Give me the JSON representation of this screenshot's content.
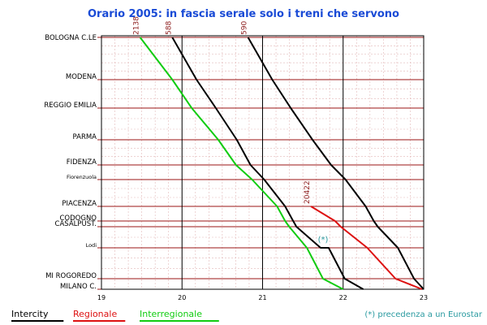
{
  "chart_data": {
    "type": "line",
    "title": "Orario 2005: in fascia serale solo i treni che servono",
    "x_unit": "hour of day",
    "xlim": [
      19,
      23
    ],
    "x_ticks": [
      "19",
      "20",
      "21",
      "22",
      "23"
    ],
    "stations": [
      {
        "name": "BOLOGNA C.LE",
        "small": false
      },
      {
        "name": "MODENA",
        "small": false
      },
      {
        "name": "REGGIO EMILIA",
        "small": false
      },
      {
        "name": "PARMA",
        "small": false
      },
      {
        "name": "FIDENZA",
        "small": false
      },
      {
        "name": "Fiorenzuola",
        "small": true
      },
      {
        "name": "PIACENZA",
        "small": false
      },
      {
        "name": "CODOGNO",
        "small": false
      },
      {
        "name": "CASALPUST.",
        "small": false
      },
      {
        "name": "Lodi",
        "small": true
      },
      {
        "name": "MI ROGOREDO",
        "small": false
      },
      {
        "name": "MILANO C.",
        "small": false
      }
    ],
    "series": [
      {
        "name": "2138",
        "category": "Interregionale",
        "color": "#11cc11",
        "points": [
          [
            19.48,
            0
          ],
          [
            19.88,
            1
          ],
          [
            20.12,
            2
          ],
          [
            20.45,
            3
          ],
          [
            20.67,
            4
          ],
          [
            20.87,
            5
          ],
          [
            21.18,
            6
          ],
          [
            21.28,
            7
          ],
          [
            21.33,
            8
          ],
          [
            21.55,
            9
          ],
          [
            21.75,
            10
          ],
          [
            22.0,
            11
          ]
        ]
      },
      {
        "name": "588",
        "category": "Intercity",
        "color": "#000000",
        "points": [
          [
            19.88,
            0
          ],
          [
            20.18,
            1
          ],
          [
            20.42,
            2
          ],
          [
            20.68,
            3
          ],
          [
            20.85,
            4
          ],
          [
            21.02,
            5
          ],
          [
            21.28,
            6
          ],
          [
            21.38,
            7
          ],
          [
            21.42,
            8
          ],
          [
            21.72,
            9
          ],
          [
            21.82,
            9
          ],
          [
            22.02,
            10
          ],
          [
            22.25,
            11
          ]
        ]
      },
      {
        "name": "590",
        "category": "Intercity",
        "color": "#000000",
        "points": [
          [
            20.82,
            0
          ],
          [
            21.12,
            1
          ],
          [
            21.35,
            2
          ],
          [
            21.62,
            3
          ],
          [
            21.85,
            4
          ],
          [
            22.03,
            5
          ],
          [
            22.28,
            6
          ],
          [
            22.38,
            7
          ],
          [
            22.43,
            8
          ],
          [
            22.68,
            9
          ],
          [
            22.88,
            10
          ],
          [
            23.0,
            11
          ]
        ]
      },
      {
        "name": "20422",
        "category": "Regionale",
        "color": "#dd1111",
        "points": [
          [
            21.6,
            6
          ],
          [
            21.9,
            7
          ],
          [
            21.97,
            8
          ],
          [
            22.3,
            9
          ],
          [
            22.65,
            10
          ],
          [
            22.98,
            11
          ]
        ]
      }
    ],
    "train_labels": [
      "2138",
      "588",
      "590",
      "20422"
    ],
    "legend": [
      {
        "label": "Intercity",
        "color": "#000000",
        "text_color": "#000000"
      },
      {
        "label": "Regionale",
        "color": "#dd1111",
        "text_color": "#dd1111"
      },
      {
        "label": "Interregionale",
        "color": "#11cc11",
        "text_color": "#11cc11"
      }
    ],
    "note_marker": "(*)",
    "note": "(*) precedenza a un Eurostar",
    "grid": true
  }
}
